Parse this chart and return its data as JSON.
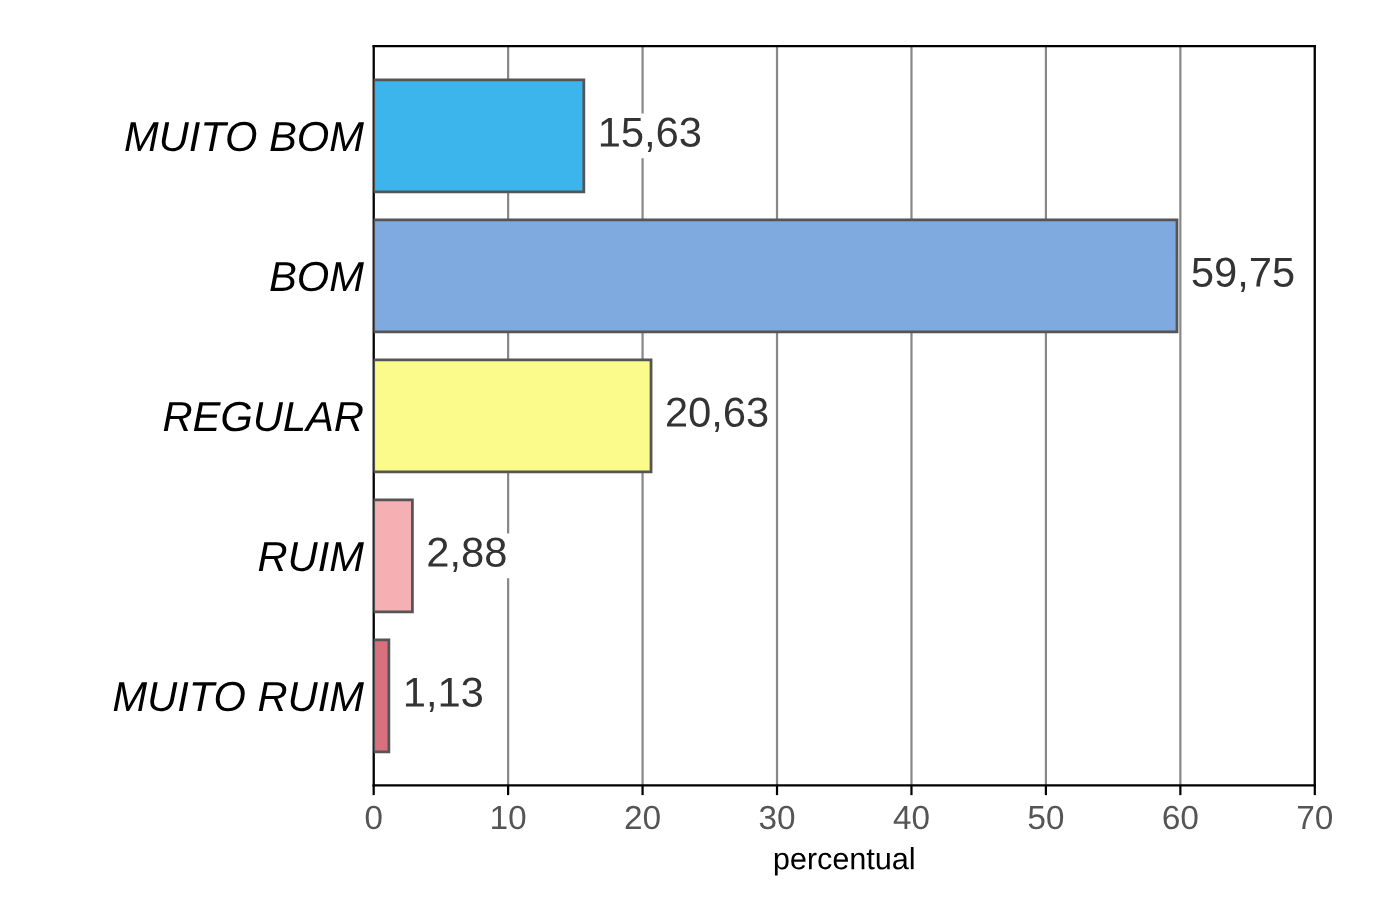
{
  "chart_data": {
    "type": "bar",
    "orientation": "horizontal",
    "xlabel": "percentual",
    "categories": [
      "MUITO BOM",
      "BOM",
      "REGULAR",
      "RUIM",
      "MUITO RUIM"
    ],
    "values": [
      15.63,
      59.75,
      20.63,
      2.88,
      1.13
    ],
    "value_labels": [
      "15,63",
      "59,75",
      "20,63",
      "2,88",
      "1,13"
    ],
    "colors": [
      "#3cb4ec",
      "#7eaadf",
      "#fbfb8c",
      "#f5b0b4",
      "#d8707e"
    ],
    "xlim": [
      0,
      70
    ],
    "xticks": [
      0,
      10,
      20,
      30,
      40,
      50,
      60,
      70
    ],
    "grid": "x"
  }
}
